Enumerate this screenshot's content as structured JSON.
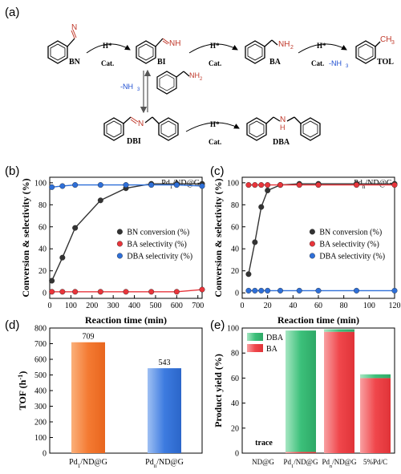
{
  "panels": {
    "a": "(a)",
    "b": "(b)",
    "c": "(c)",
    "d": "(d)",
    "e": "(e)"
  },
  "scheme": {
    "molecules": {
      "bn": "BN",
      "bi": "BI",
      "ba": "BA",
      "tol": "TOL",
      "dbi": "DBI",
      "dba": "DBA",
      "nitrile_n": "N",
      "imine_nh": "NH",
      "amine_nh2": "NH",
      "amine_sub": "2",
      "ch3": "CH",
      "ch3_sub": "3",
      "dbi_n": "N",
      "dba_nh": "N",
      "dba_h": "H",
      "reagent_nh2": "NH",
      "reagent_sub": "2"
    },
    "steps": {
      "h": "H*",
      "cat": "Cat.",
      "nh3_loss": "-NH",
      "nh3_sub": "3"
    },
    "colors": {
      "hetero_atom": "#c0392b",
      "nh3": "#1f4fd1"
    }
  },
  "chart_data": [
    {
      "id": "b",
      "type": "scatter",
      "title": "Pd₁/ND@G",
      "title_main": "Pd",
      "title_sub": "1",
      "title_rest": "/ND@G",
      "xlabel": "Reaction time (min)",
      "ylabel": "Conversion & selectivity (%)",
      "xlim": [
        0,
        720
      ],
      "ylim": [
        -5,
        105
      ],
      "xticks": [
        "0",
        "100",
        "200",
        "300",
        "400",
        "500",
        "600",
        "700"
      ],
      "yticks": [
        "0",
        "20",
        "40",
        "60",
        "80",
        "100"
      ],
      "legend": "middle-right",
      "series": [
        {
          "name": "BN conversion (%)",
          "color": "#333333",
          "x": [
            10,
            60,
            120,
            240,
            360,
            480,
            600,
            720
          ],
          "y": [
            11,
            32,
            59,
            84,
            95,
            99,
            99,
            99
          ]
        },
        {
          "name": "BA selectivity (%)",
          "color": "#e8353b",
          "x": [
            10,
            60,
            120,
            240,
            360,
            480,
            600,
            720
          ],
          "y": [
            1,
            1,
            1,
            1,
            1,
            1,
            1,
            3
          ]
        },
        {
          "name": "DBA selectivity (%)",
          "color": "#2e6fd8",
          "x": [
            10,
            60,
            120,
            240,
            360,
            480,
            600,
            720
          ],
          "y": [
            96,
            97,
            98,
            98,
            98,
            98,
            98,
            97
          ]
        }
      ]
    },
    {
      "id": "c",
      "type": "scatter",
      "title": "Pdₙ/ND@G",
      "title_main": "Pd",
      "title_sub": "n",
      "title_rest": "/ND@G",
      "xlabel": "Reaction time (min)",
      "ylabel": "Conversion & selectivity (%)",
      "xlim": [
        0,
        120
      ],
      "ylim": [
        -5,
        105
      ],
      "xticks": [
        "0",
        "20",
        "40",
        "60",
        "80",
        "100",
        "120"
      ],
      "yticks": [
        "0",
        "20",
        "40",
        "60",
        "80",
        "100"
      ],
      "legend": "middle-right",
      "series": [
        {
          "name": "BN conversion (%)",
          "color": "#333333",
          "x": [
            5,
            10,
            15,
            20,
            30,
            45,
            60,
            90,
            120
          ],
          "y": [
            17,
            46,
            78,
            93,
            98,
            99,
            99,
            99,
            99
          ]
        },
        {
          "name": "BA selectivity (%)",
          "color": "#e8353b",
          "x": [
            5,
            10,
            15,
            20,
            30,
            45,
            60,
            90,
            120
          ],
          "y": [
            98,
            98,
            98,
            98,
            98,
            98,
            98,
            98,
            98
          ]
        },
        {
          "name": "DBA selectivity (%)",
          "color": "#2e6fd8",
          "x": [
            5,
            10,
            15,
            20,
            30,
            45,
            60,
            90,
            120
          ],
          "y": [
            2,
            2,
            2,
            2,
            2,
            2,
            2,
            2,
            2
          ]
        }
      ]
    },
    {
      "id": "d",
      "type": "bar",
      "ylabel": "TOF (h⁻¹)",
      "ylabel_main": "TOF (h",
      "ylabel_sup": "-1",
      "ylabel_end": ")",
      "ylim": [
        0,
        800
      ],
      "yticks": [
        "0",
        "100",
        "200",
        "300",
        "400",
        "500",
        "600",
        "700",
        "800"
      ],
      "categories": [
        {
          "main": "Pd",
          "sub": "1",
          "rest": "/ND@G"
        },
        {
          "main": "Pd",
          "sub": "n",
          "rest": "/ND@G"
        }
      ],
      "values": [
        709,
        543
      ],
      "value_labels": [
        "709",
        "543"
      ],
      "colors": [
        "#f47a32",
        "#3d7be0"
      ]
    },
    {
      "id": "e",
      "type": "bar",
      "stacked": true,
      "ylabel": "Product yield (%)",
      "ylim": [
        0,
        100
      ],
      "yticks": [
        "0",
        "20",
        "40",
        "60",
        "80",
        "100"
      ],
      "categories": [
        {
          "main": "ND@G",
          "sub": "",
          "rest": ""
        },
        {
          "main": "Pd",
          "sub": "1",
          "rest": "/ND@G"
        },
        {
          "main": "Pd",
          "sub": "n",
          "rest": "/ND@G"
        },
        {
          "main": "5%Pd/C",
          "sub": "",
          "rest": ""
        }
      ],
      "legend": "top-left",
      "series": [
        {
          "name": "BA",
          "color": "#f0474c",
          "values": [
            0,
            1,
            97,
            60
          ]
        },
        {
          "name": "DBA",
          "color": "#3cc07a",
          "values": [
            0,
            97,
            2,
            3
          ]
        }
      ],
      "annotation": "trace"
    }
  ]
}
